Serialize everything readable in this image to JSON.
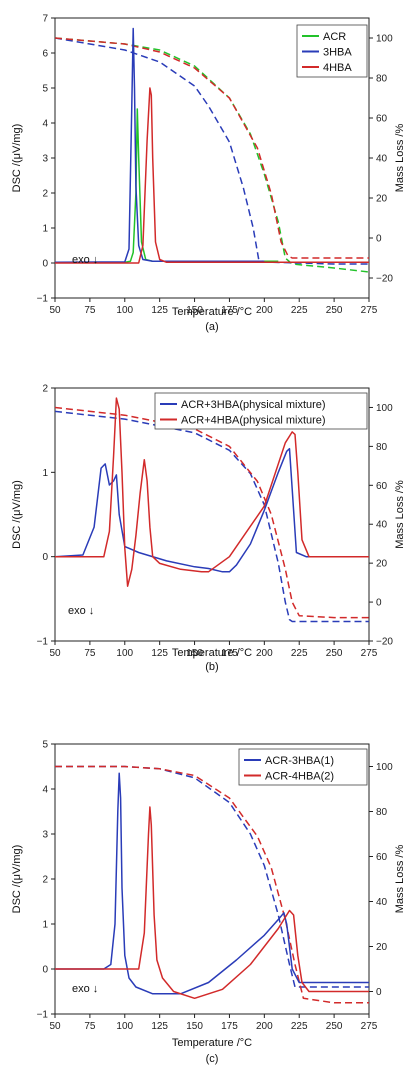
{
  "colors": {
    "ACR": "#22c22a",
    "3HBA": "#2a3cb8",
    "4HBA": "#d22a2a"
  },
  "chart_data": [
    {
      "type": "line",
      "caption": "(a)",
      "xlabel": "Temperature /°C",
      "ylabel": "DSC /(μV/mg)",
      "y2label": "Mass Loss /%",
      "xlim": [
        50,
        275
      ],
      "ylim": [
        -1,
        7
      ],
      "y2lim": [
        -30,
        110
      ],
      "xticks": [
        50,
        75,
        100,
        125,
        150,
        175,
        200,
        225,
        250,
        275
      ],
      "yticks": [
        -1,
        0,
        1,
        2,
        3,
        4,
        5,
        6,
        7
      ],
      "y2ticks": [
        -20,
        0,
        20,
        40,
        60,
        80,
        100
      ],
      "annotation": "exo ↓",
      "legend_position": "top-right",
      "legend": [
        "ACR",
        "3HBA",
        "4HBA"
      ],
      "series": [
        {
          "name": "ACR",
          "color_key": "ACR",
          "axis": "left",
          "style": "solid",
          "x": [
            50,
            100,
            104,
            106,
            108,
            109,
            110,
            112,
            115,
            120,
            150,
            200,
            210
          ],
          "y": [
            0.02,
            0.02,
            0.05,
            0.3,
            2.0,
            4.4,
            3.0,
            0.6,
            0.1,
            0.05,
            0.05,
            0.05,
            0.05
          ]
        },
        {
          "name": "3HBA",
          "color_key": "3HBA",
          "axis": "left",
          "style": "solid",
          "x": [
            50,
            100,
            103,
            105,
            106,
            107,
            108,
            110,
            113,
            120,
            150,
            200
          ],
          "y": [
            0.02,
            0.03,
            0.4,
            4.5,
            6.7,
            5.0,
            2.2,
            0.5,
            0.1,
            0.05,
            0.05,
            0.05
          ]
        },
        {
          "name": "4HBA",
          "color_key": "4HBA",
          "axis": "left",
          "style": "solid",
          "x": [
            50,
            110,
            113,
            116,
            118,
            119,
            120,
            122,
            125,
            130,
            150,
            200,
            275
          ],
          "y": [
            0.0,
            0.0,
            0.5,
            3.5,
            5.0,
            4.8,
            3.0,
            0.6,
            0.1,
            0.02,
            0.02,
            0.02,
            0.02
          ]
        },
        {
          "name": "ACR TG",
          "color_key": "ACR",
          "axis": "right",
          "style": "dashed",
          "x": [
            50,
            100,
            125,
            150,
            175,
            190,
            200,
            210,
            215,
            220,
            250,
            275
          ],
          "y": [
            100,
            97,
            94,
            86,
            70,
            52,
            32,
            8,
            -10,
            -13,
            -15,
            -17
          ]
        },
        {
          "name": "3HBA TG",
          "color_key": "3HBA",
          "axis": "right",
          "style": "dashed",
          "x": [
            50,
            100,
            125,
            150,
            160,
            175,
            185,
            192,
            196,
            200,
            250,
            275
          ],
          "y": [
            100,
            94,
            88,
            76,
            66,
            48,
            25,
            5,
            -11,
            -12,
            -13,
            -13
          ]
        },
        {
          "name": "4HBA TG",
          "color_key": "4HBA",
          "axis": "right",
          "style": "dashed",
          "x": [
            50,
            100,
            125,
            150,
            175,
            195,
            205,
            212,
            217,
            220,
            250,
            275
          ],
          "y": [
            100,
            97,
            93,
            85,
            70,
            45,
            22,
            -2,
            -9,
            -10,
            -10,
            -10
          ]
        }
      ]
    },
    {
      "type": "line",
      "caption": "(b)",
      "xlabel": "Temperature /°C",
      "ylabel": "DSC /(μV/mg)",
      "y2label": "Mass Loss /%",
      "xlim": [
        50,
        275
      ],
      "ylim": [
        -1,
        2
      ],
      "y2lim": [
        -20,
        110
      ],
      "xticks": [
        50,
        75,
        100,
        125,
        150,
        175,
        200,
        225,
        250,
        275
      ],
      "yticks": [
        -1,
        0,
        1,
        2
      ],
      "y2ticks": [
        -20,
        0,
        20,
        40,
        60,
        80,
        100
      ],
      "annotation": "exo ↓",
      "legend_position": "top-right",
      "legend": [
        "ACR+3HBA(physical mixture)",
        "ACR+4HBA(physical mixture)"
      ],
      "series": [
        {
          "name": "ACR+3HBA(physical mixture)",
          "color_key": "3HBA",
          "axis": "left",
          "style": "solid",
          "x": [
            50,
            70,
            78,
            83,
            86,
            89,
            92,
            94,
            96,
            100,
            110,
            130,
            150,
            160,
            170,
            175,
            180,
            190,
            200,
            210,
            216,
            218,
            220,
            223,
            230,
            275
          ],
          "y": [
            0.0,
            0.02,
            0.35,
            1.05,
            1.1,
            0.85,
            0.9,
            0.97,
            0.5,
            0.12,
            0.05,
            -0.05,
            -0.12,
            -0.14,
            -0.18,
            -0.18,
            -0.1,
            0.15,
            0.55,
            1.0,
            1.25,
            1.28,
            0.8,
            0.05,
            0.0,
            0.0
          ]
        },
        {
          "name": "ACR+4HBA(physical mixture)",
          "color_key": "4HBA",
          "axis": "left",
          "style": "solid",
          "x": [
            50,
            85,
            89,
            92,
            94,
            96,
            98,
            100,
            102,
            105,
            108,
            111,
            114,
            116,
            118,
            120,
            125,
            140,
            155,
            160,
            175,
            200,
            215,
            220,
            222,
            224,
            227,
            232,
            275
          ],
          "y": [
            0.0,
            0.0,
            0.3,
            1.2,
            1.88,
            1.75,
            1.0,
            0.1,
            -0.35,
            -0.15,
            0.25,
            0.75,
            1.15,
            0.9,
            0.35,
            0.0,
            -0.08,
            -0.15,
            -0.18,
            -0.18,
            0.0,
            0.6,
            1.35,
            1.48,
            1.45,
            1.0,
            0.2,
            0.0,
            0.0
          ]
        },
        {
          "name": "ACR+3HBA TG",
          "color_key": "3HBA",
          "axis": "right",
          "style": "dashed",
          "x": [
            50,
            100,
            150,
            175,
            190,
            200,
            210,
            215,
            218,
            220,
            250,
            275
          ],
          "y": [
            98,
            94,
            87,
            78,
            66,
            50,
            20,
            0,
            -9,
            -10,
            -10,
            -10
          ]
        },
        {
          "name": "ACR+4HBA TG",
          "color_key": "4HBA",
          "axis": "right",
          "style": "dashed",
          "x": [
            50,
            100,
            150,
            175,
            195,
            205,
            215,
            220,
            225,
            250,
            275
          ],
          "y": [
            100,
            96,
            89,
            80,
            62,
            45,
            17,
            0,
            -7,
            -8,
            -8
          ]
        }
      ]
    },
    {
      "type": "line",
      "caption": "(c)",
      "xlabel": "Temperature /°C",
      "ylabel": "DSC /(μV/mg)",
      "y2label": "Mass Loss /%",
      "xlim": [
        50,
        275
      ],
      "ylim": [
        -1,
        5
      ],
      "y2lim": [
        -10,
        110
      ],
      "xticks": [
        50,
        75,
        100,
        125,
        150,
        175,
        200,
        225,
        250,
        275
      ],
      "yticks": [
        -1,
        0,
        1,
        2,
        3,
        4,
        5
      ],
      "y2ticks": [
        0,
        20,
        40,
        60,
        80,
        100
      ],
      "annotation": "exo ↓",
      "legend_position": "top-right",
      "legend": [
        "ACR-3HBA(1)",
        "ACR-4HBA(2)"
      ],
      "series": [
        {
          "name": "ACR-3HBA(1)",
          "color_key": "3HBA",
          "axis": "left",
          "style": "solid",
          "x": [
            50,
            85,
            90,
            93,
            95,
            96,
            97,
            98,
            100,
            103,
            108,
            120,
            140,
            160,
            180,
            200,
            210,
            214,
            216,
            220,
            225,
            275
          ],
          "y": [
            0.0,
            0.0,
            0.1,
            1.0,
            3.5,
            4.35,
            3.8,
            1.8,
            0.3,
            -0.2,
            -0.4,
            -0.55,
            -0.55,
            -0.3,
            0.2,
            0.75,
            1.1,
            1.25,
            1.0,
            0.0,
            -0.3,
            -0.3
          ]
        },
        {
          "name": "ACR-4HBA(2)",
          "color_key": "4HBA",
          "axis": "left",
          "style": "solid",
          "x": [
            50,
            110,
            114,
            117,
            118,
            119,
            121,
            123,
            127,
            135,
            150,
            170,
            190,
            210,
            218,
            221,
            224,
            227,
            232,
            275
          ],
          "y": [
            0.0,
            0.0,
            0.8,
            3.0,
            3.6,
            3.2,
            1.2,
            0.2,
            -0.2,
            -0.5,
            -0.65,
            -0.45,
            0.1,
            0.9,
            1.3,
            1.2,
            0.3,
            -0.3,
            -0.5,
            -0.5
          ]
        },
        {
          "name": "ACR-3HBA(1) TG",
          "color_key": "3HBA",
          "axis": "right",
          "style": "dashed",
          "x": [
            50,
            100,
            125,
            150,
            175,
            190,
            200,
            210,
            218,
            222,
            250,
            275
          ],
          "y": [
            100,
            100,
            99,
            95,
            84,
            70,
            56,
            34,
            12,
            2,
            2,
            2
          ]
        },
        {
          "name": "ACR-4HBA(2) TG",
          "color_key": "4HBA",
          "axis": "right",
          "style": "dashed",
          "x": [
            50,
            100,
            125,
            150,
            175,
            195,
            205,
            215,
            222,
            228,
            250,
            275
          ],
          "y": [
            100,
            100,
            99,
            96,
            86,
            69,
            55,
            32,
            12,
            -3,
            -5,
            -5
          ]
        }
      ]
    }
  ]
}
